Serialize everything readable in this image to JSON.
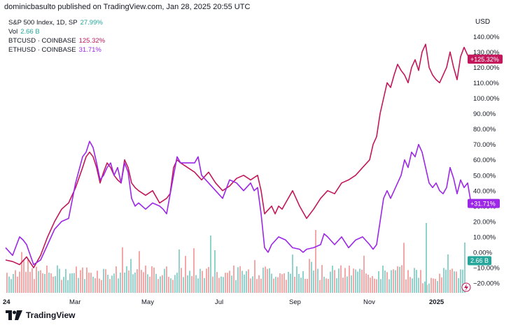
{
  "header": {
    "published": "dominicbasulto published on TradingView.com, Jan 28, 2025 20:55 UTC"
  },
  "chart_data": {
    "type": "line",
    "currency_label": "USD",
    "legend_placement": "top-left",
    "grid": false,
    "ylim": [
      -25,
      145
    ],
    "x_tick_labels": [
      "24",
      "Mar",
      "May",
      "Jul",
      "Sep",
      "Nov",
      "2025"
    ],
    "y_tick_labels": [
      "140.00%",
      "130.00%",
      "120.00%",
      "110.00%",
      "100.00%",
      "90.00%",
      "80.00%",
      "70.00%",
      "60.00%",
      "50.00%",
      "40.00%",
      "30.00%",
      "20.00%",
      "10.00%",
      "0.00%",
      "−10.00%",
      "−20.00%"
    ],
    "y_tick_values": [
      140,
      130,
      120,
      110,
      100,
      90,
      80,
      70,
      60,
      50,
      40,
      30,
      20,
      10,
      0,
      -10,
      -20
    ],
    "series": [
      {
        "name": "S&P 500 Index, 1D, SP",
        "label": "27.99%",
        "color": "#26a69a",
        "values": []
      },
      {
        "name": "Vol",
        "label": "2.66 B",
        "color": "#26a69a",
        "values": []
      },
      {
        "name": "BTCUSD · COINBASE",
        "label": "125.32%",
        "badge": "+125.32%",
        "last_value": 125.32,
        "color": "#c2185b",
        "values": [
          [
            0,
            -5
          ],
          [
            10,
            -6
          ],
          [
            20,
            -8
          ],
          [
            30,
            -3
          ],
          [
            40,
            -10
          ],
          [
            50,
            -2
          ],
          [
            60,
            10
          ],
          [
            70,
            20
          ],
          [
            80,
            28
          ],
          [
            90,
            32
          ],
          [
            100,
            42
          ],
          [
            110,
            55
          ],
          [
            115,
            62
          ],
          [
            120,
            65
          ],
          [
            125,
            62
          ],
          [
            130,
            55
          ],
          [
            135,
            45
          ],
          [
            140,
            52
          ],
          [
            145,
            58
          ],
          [
            150,
            55
          ],
          [
            155,
            50
          ],
          [
            160,
            47
          ],
          [
            165,
            45
          ],
          [
            170,
            60
          ],
          [
            175,
            55
          ],
          [
            180,
            45
          ],
          [
            185,
            42
          ],
          [
            190,
            40
          ],
          [
            200,
            37
          ],
          [
            210,
            40
          ],
          [
            220,
            32
          ],
          [
            230,
            35
          ],
          [
            235,
            38
          ],
          [
            240,
            55
          ],
          [
            245,
            60
          ],
          [
            250,
            58
          ],
          [
            260,
            55
          ],
          [
            270,
            52
          ],
          [
            280,
            47
          ],
          [
            290,
            52
          ],
          [
            300,
            45
          ],
          [
            310,
            40
          ],
          [
            320,
            43
          ],
          [
            330,
            48
          ],
          [
            340,
            50
          ],
          [
            350,
            47
          ],
          [
            360,
            50
          ],
          [
            365,
            40
          ],
          [
            370,
            25
          ],
          [
            380,
            30
          ],
          [
            385,
            25
          ],
          [
            390,
            30
          ],
          [
            395,
            28
          ],
          [
            400,
            32
          ],
          [
            410,
            40
          ],
          [
            415,
            35
          ],
          [
            420,
            30
          ],
          [
            430,
            22
          ],
          [
            440,
            28
          ],
          [
            450,
            35
          ],
          [
            460,
            40
          ],
          [
            470,
            38
          ],
          [
            480,
            45
          ],
          [
            490,
            47
          ],
          [
            500,
            50
          ],
          [
            510,
            55
          ],
          [
            520,
            60
          ],
          [
            525,
            70
          ],
          [
            530,
            75
          ],
          [
            535,
            90
          ],
          [
            540,
            100
          ],
          [
            545,
            110
          ],
          [
            550,
            107
          ],
          [
            555,
            115
          ],
          [
            560,
            122
          ],
          [
            565,
            118
          ],
          [
            570,
            115
          ],
          [
            575,
            110
          ],
          [
            580,
            120
          ],
          [
            585,
            125
          ],
          [
            590,
            118
          ],
          [
            595,
            130
          ],
          [
            600,
            135
          ],
          [
            605,
            120
          ],
          [
            610,
            115
          ],
          [
            615,
            112
          ],
          [
            620,
            110
          ],
          [
            625,
            115
          ],
          [
            630,
            120
          ],
          [
            635,
            130
          ],
          [
            640,
            120
          ],
          [
            645,
            112
          ],
          [
            650,
            127
          ],
          [
            655,
            133
          ],
          [
            660,
            128
          ],
          [
            665,
            125.32
          ]
        ]
      },
      {
        "name": "ETHUSD · COINBASE",
        "label": "31.71%",
        "badge": "+31.71%",
        "last_value": 31.71,
        "color": "#9c27e6",
        "values": [
          [
            0,
            3
          ],
          [
            10,
            -2
          ],
          [
            20,
            10
          ],
          [
            25,
            8
          ],
          [
            30,
            5
          ],
          [
            40,
            -8
          ],
          [
            50,
            -5
          ],
          [
            60,
            5
          ],
          [
            70,
            15
          ],
          [
            80,
            20
          ],
          [
            90,
            22
          ],
          [
            100,
            45
          ],
          [
            110,
            62
          ],
          [
            115,
            65
          ],
          [
            120,
            72
          ],
          [
            125,
            68
          ],
          [
            130,
            58
          ],
          [
            135,
            47
          ],
          [
            140,
            50
          ],
          [
            145,
            55
          ],
          [
            150,
            58
          ],
          [
            155,
            50
          ],
          [
            160,
            55
          ],
          [
            165,
            45
          ],
          [
            170,
            58
          ],
          [
            175,
            52
          ],
          [
            180,
            35
          ],
          [
            185,
            30
          ],
          [
            190,
            32
          ],
          [
            200,
            28
          ],
          [
            210,
            32
          ],
          [
            220,
            30
          ],
          [
            225,
            28
          ],
          [
            230,
            25
          ],
          [
            240,
            50
          ],
          [
            245,
            62
          ],
          [
            250,
            58
          ],
          [
            260,
            58
          ],
          [
            270,
            58
          ],
          [
            275,
            62
          ],
          [
            280,
            50
          ],
          [
            290,
            45
          ],
          [
            300,
            40
          ],
          [
            310,
            35
          ],
          [
            320,
            47
          ],
          [
            330,
            45
          ],
          [
            340,
            40
          ],
          [
            350,
            45
          ],
          [
            355,
            40
          ],
          [
            360,
            42
          ],
          [
            365,
            25
          ],
          [
            370,
            3
          ],
          [
            375,
            0
          ],
          [
            380,
            5
          ],
          [
            390,
            10
          ],
          [
            400,
            8
          ],
          [
            410,
            3
          ],
          [
            420,
            2
          ],
          [
            425,
            0
          ],
          [
            430,
            2
          ],
          [
            440,
            3
          ],
          [
            450,
            5
          ],
          [
            455,
            12
          ],
          [
            460,
            10
          ],
          [
            470,
            5
          ],
          [
            480,
            10
          ],
          [
            490,
            3
          ],
          [
            500,
            8
          ],
          [
            510,
            10
          ],
          [
            520,
            5
          ],
          [
            525,
            2
          ],
          [
            530,
            5
          ],
          [
            535,
            20
          ],
          [
            540,
            35
          ],
          [
            545,
            40
          ],
          [
            550,
            35
          ],
          [
            555,
            40
          ],
          [
            560,
            45
          ],
          [
            565,
            50
          ],
          [
            570,
            60
          ],
          [
            575,
            55
          ],
          [
            580,
            65
          ],
          [
            585,
            62
          ],
          [
            590,
            70
          ],
          [
            595,
            65
          ],
          [
            600,
            55
          ],
          [
            605,
            45
          ],
          [
            610,
            42
          ],
          [
            615,
            45
          ],
          [
            620,
            40
          ],
          [
            625,
            38
          ],
          [
            630,
            42
          ],
          [
            635,
            55
          ],
          [
            640,
            48
          ],
          [
            645,
            38
          ],
          [
            650,
            47
          ],
          [
            655,
            42
          ],
          [
            660,
            45
          ],
          [
            665,
            31.71
          ]
        ]
      }
    ]
  },
  "volume_badge": "2.66 B",
  "footer": {
    "brand": "TradingView"
  }
}
